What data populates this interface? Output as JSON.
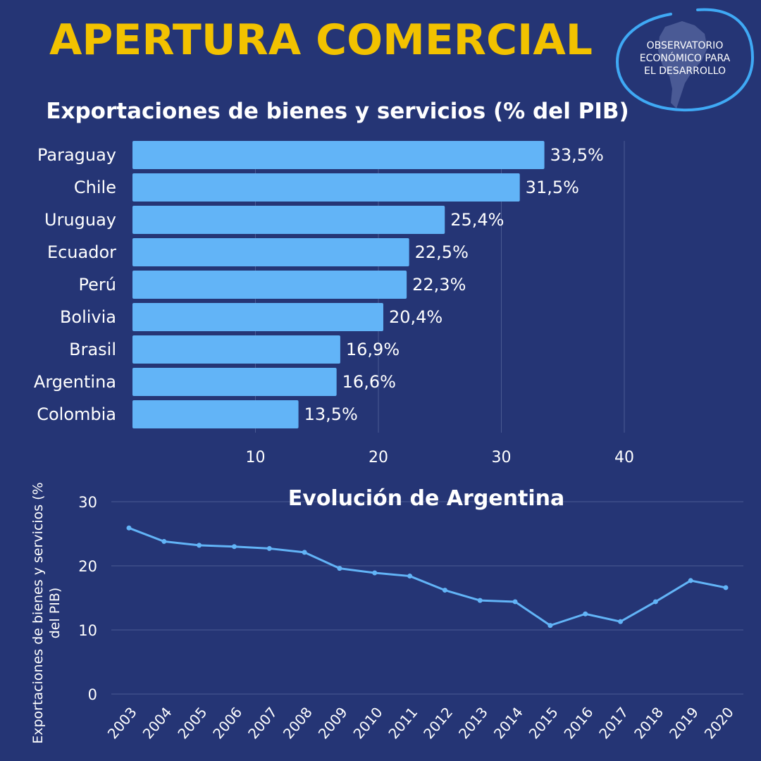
{
  "header": {
    "title": "APERTURA COMERCIAL",
    "logo_lines": [
      "OBSERVATORIO",
      "ECONÓMICO PARA",
      "EL DESARROLLO"
    ]
  },
  "colors": {
    "background": "#253575",
    "title": "#F2C200",
    "bars": "#62B4F7",
    "line": "#62B4F7",
    "text": "#FFFFFF",
    "grid": "#4A5A92",
    "logo_ring": "#3FA9F5"
  },
  "chart_data": [
    {
      "type": "bar",
      "orientation": "horizontal",
      "title": "Exportaciones de bienes y servicios (% del PIB)",
      "categories": [
        "Paraguay",
        "Chile",
        "Uruguay",
        "Ecuador",
        "Perú",
        "Bolivia",
        "Brasil",
        "Argentina",
        "Colombia"
      ],
      "values": [
        33.5,
        31.5,
        25.4,
        22.5,
        22.3,
        20.4,
        16.9,
        16.6,
        13.5
      ],
      "value_labels": [
        "33,5%",
        "31,5%",
        "25,4%",
        "22,5%",
        "22,3%",
        "20,4%",
        "16,9%",
        "16,6%",
        "13,5%"
      ],
      "xticks": [
        "10",
        "20",
        "30",
        "40"
      ],
      "xlim": [
        0,
        40
      ],
      "grid": true,
      "legend": "none"
    },
    {
      "type": "line",
      "title": "Evolución de Argentina",
      "ylabel": "Exportaciones de bienes y servicios (% del PIB)",
      "x": [
        "2003",
        "2004",
        "2005",
        "2006",
        "2007",
        "2008",
        "2009",
        "2010",
        "2011",
        "2012",
        "2013",
        "2014",
        "2015",
        "2016",
        "2017",
        "2018",
        "2019",
        "2020"
      ],
      "values": [
        25.9,
        23.8,
        23.2,
        23.0,
        22.7,
        22.1,
        19.6,
        18.9,
        18.4,
        16.2,
        14.6,
        14.4,
        10.7,
        12.5,
        11.3,
        14.4,
        17.7,
        16.6
      ],
      "yticks": [
        "0",
        "10",
        "20",
        "30"
      ],
      "ylim": [
        0,
        30
      ],
      "grid": true,
      "legend": "none"
    }
  ]
}
